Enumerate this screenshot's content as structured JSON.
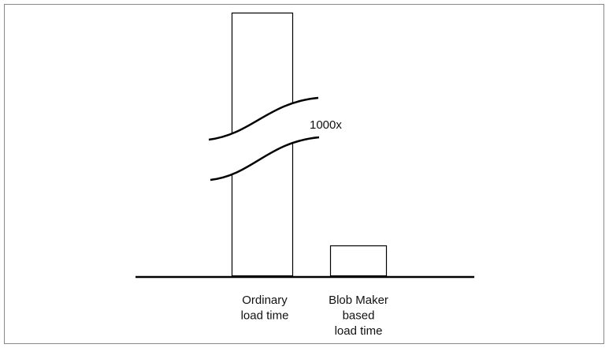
{
  "annotation": "1000x",
  "bars": [
    {
      "label": [
        "Ordinary",
        "load time"
      ]
    },
    {
      "label": [
        "Blob Maker",
        "based",
        "load time"
      ]
    }
  ]
}
